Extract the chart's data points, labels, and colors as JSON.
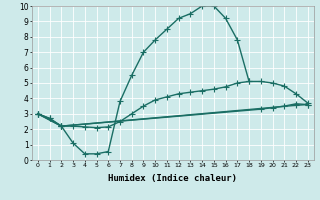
{
  "xlabel": "Humidex (Indice chaleur)",
  "xlim": [
    -0.5,
    23.5
  ],
  "ylim": [
    0,
    10
  ],
  "xticks": [
    0,
    1,
    2,
    3,
    4,
    5,
    6,
    7,
    8,
    9,
    10,
    11,
    12,
    13,
    14,
    15,
    16,
    17,
    18,
    19,
    20,
    21,
    22,
    23
  ],
  "yticks": [
    0,
    1,
    2,
    3,
    4,
    5,
    6,
    7,
    8,
    9,
    10
  ],
  "bg_color": "#ceeaea",
  "line_color": "#1a6e64",
  "line_width": 1.0,
  "marker": "+",
  "marker_size": 4,
  "lines": [
    {
      "x": [
        0,
        1,
        2,
        3,
        4,
        5,
        6,
        7,
        8,
        9,
        10,
        11,
        12,
        13,
        14,
        15,
        16,
        17,
        18
      ],
      "y": [
        3.0,
        2.7,
        2.2,
        1.1,
        0.4,
        0.4,
        0.55,
        3.8,
        5.5,
        7.0,
        7.8,
        8.5,
        9.2,
        9.5,
        10.0,
        10.0,
        9.2,
        7.8,
        5.1
      ]
    },
    {
      "x": [
        0,
        1,
        2,
        3,
        4,
        5,
        6,
        7,
        8,
        9,
        10,
        11,
        12,
        13,
        14,
        15,
        16,
        17,
        18,
        19,
        20,
        21,
        22,
        23
      ],
      "y": [
        3.0,
        2.7,
        2.2,
        2.2,
        2.15,
        2.1,
        2.15,
        2.5,
        3.0,
        3.5,
        3.9,
        4.1,
        4.3,
        4.4,
        4.5,
        4.6,
        4.75,
        5.0,
        5.1,
        5.1,
        5.0,
        4.8,
        4.3,
        3.7
      ]
    },
    {
      "x": [
        0,
        2,
        19,
        20,
        21,
        22,
        23
      ],
      "y": [
        3.0,
        2.2,
        3.3,
        3.4,
        3.5,
        3.65,
        3.6
      ]
    },
    {
      "x": [
        0,
        2,
        22,
        23
      ],
      "y": [
        3.0,
        2.2,
        3.55,
        3.6
      ]
    }
  ]
}
